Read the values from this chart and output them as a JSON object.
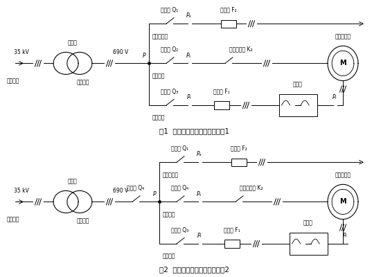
{
  "title1": "图1  双馈风电机组主回路简化图1",
  "title2": "图2  双馈风电机组主回路简化图2",
  "bg_color": "#ffffff",
  "fig_w": 5.63,
  "fig_h": 4.0,
  "dpi": 100,
  "font_size_small": 5.5,
  "font_size_label": 6.5,
  "font_size_title": 7.5,
  "lw": 0.7,
  "d1": {
    "voltage_left": "35 kV",
    "voltage_right": "690 V",
    "label_zubiandianzhan": "至变电站",
    "label_bianyaqi": "变压器",
    "label_fadian": "发电回路",
    "label_ziyong": "自用电回路",
    "label_dingzi": "定子回路",
    "label_zhuzi": "转子回路",
    "label_duikuifaheji": "双馈发电机",
    "label_bianqi": "逆变器",
    "label_Q1": "断路器 Q₁",
    "label_Q2": "断路器 Q₂",
    "label_Q3": "断路器 Q₃",
    "label_Q4": "断路器 Q₄",
    "label_F1": "熔断器 F₁",
    "label_F2": "熔断器 F₂",
    "label_K2": "并网接触器 K₂",
    "label_Pa": "Pₐ",
    "label_Ps": "Pₛ",
    "label_Pr": "Pᵣ",
    "label_Pr2": "Pᵣ"
  }
}
